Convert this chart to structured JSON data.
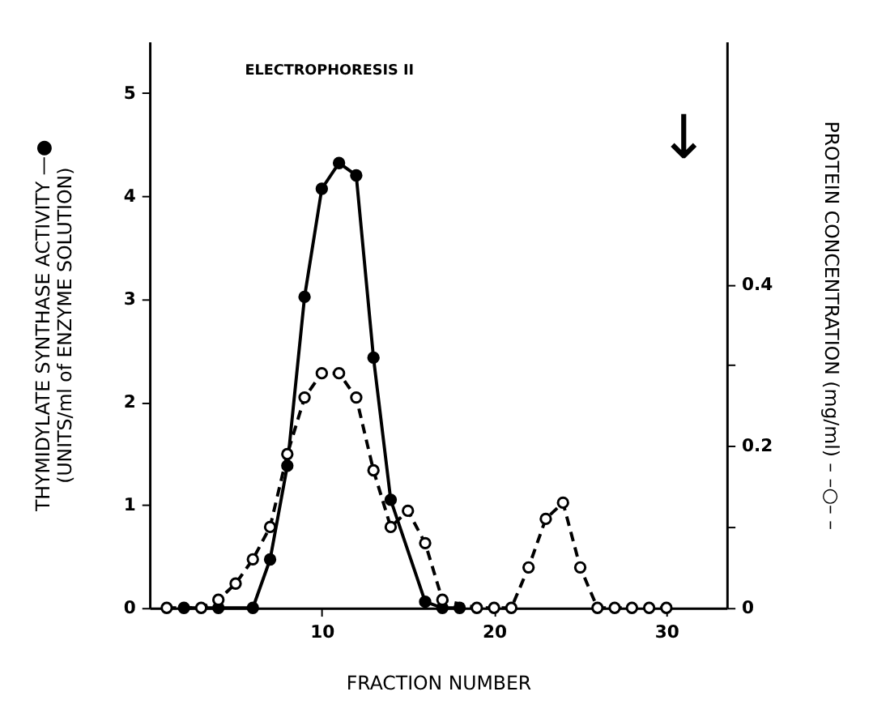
{
  "chart_data": {
    "type": "line",
    "title": "ELECTROPHORESIS II",
    "xlabel": "FRACTION NUMBER",
    "ylabel": [
      "THYMIDYLATE SYNTHASE ACTIVITY —●",
      "(UNITS/ml of ENZYME SOLUTION)"
    ],
    "y2label": "PROTEIN CONCENTRATION (mg/ml) – –○– –",
    "xlim": [
      0,
      33.5
    ],
    "xticks": [
      10,
      20,
      30
    ],
    "ylim": [
      0,
      5.5
    ],
    "yticks": [
      0,
      1,
      2,
      3,
      4,
      5
    ],
    "y2lim": [
      0,
      0.7
    ],
    "y2ticks": [
      0,
      {
        "value": 0.1,
        "label": null
      },
      0.2,
      {
        "value": 0.3,
        "label": null
      },
      0.4
    ],
    "grid": false,
    "annotations": [
      "↓"
    ],
    "series": [
      {
        "color": "#000000",
        "line_style": "solid",
        "marker": "circle",
        "x": [
          2,
          4,
          6,
          7,
          8,
          9,
          10,
          11,
          12,
          13,
          14,
          16,
          17,
          18
        ],
        "values": [
          0,
          0,
          0,
          0.47,
          1.38,
          3.02,
          4.07,
          4.32,
          4.2,
          2.43,
          1.05,
          0.06,
          0,
          0
        ]
      },
      {
        "color": "#000000",
        "line_style": "dashed",
        "marker": "circle",
        "axis": "y2",
        "x": [
          1,
          3,
          4,
          5,
          6,
          7,
          8,
          9,
          10,
          11,
          12,
          13,
          14,
          15,
          16,
          17,
          19,
          20,
          21,
          22,
          23,
          24,
          25,
          26,
          27,
          28,
          29,
          30
        ],
        "values": [
          0,
          0,
          0.01,
          0.03,
          0.06,
          0.1,
          0.19,
          0.26,
          0.29,
          0.29,
          0.26,
          0.17,
          0.1,
          0.12,
          0.08,
          0.01,
          0,
          0,
          0,
          0.05,
          0.11,
          0.13,
          0.05,
          0,
          0,
          0,
          0,
          0
        ]
      }
    ]
  }
}
